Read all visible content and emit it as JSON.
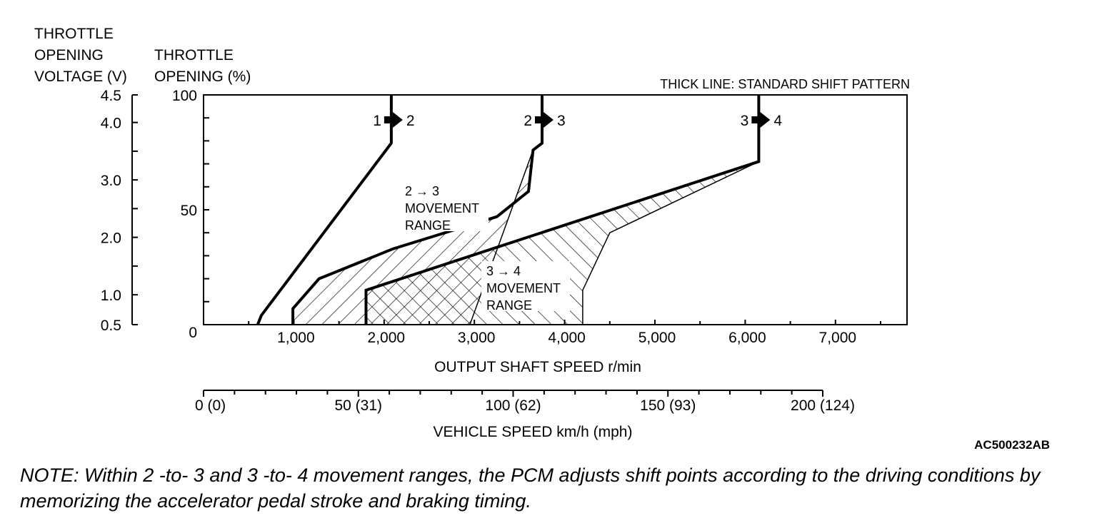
{
  "chart_data": {
    "type": "line",
    "title": "",
    "pattern_note": "THICK LINE: STANDARD SHIFT PATTERN",
    "figure_code": "AC500232AB",
    "xlabel": "OUTPUT SHAFT SPEED r/min",
    "xlim": [
      0,
      7800
    ],
    "x_ticks": [
      "1,000",
      "2,000",
      "3,000",
      "4,000",
      "5,000",
      "6,000",
      "7,000"
    ],
    "x_tick_values": [
      1000,
      2000,
      3000,
      4000,
      5000,
      6000,
      7000
    ],
    "left_axis": {
      "label_lines": [
        "THROTTLE",
        "OPENING",
        "VOLTAGE (V)"
      ],
      "ticks": [
        {
          "label": "4.5",
          "pct": 100
        },
        {
          "label": "4.0",
          "pct": 88
        },
        {
          "label": "3.0",
          "pct": 63
        },
        {
          "label": "2.0",
          "pct": 38
        },
        {
          "label": "1.0",
          "pct": 13
        },
        {
          "label": "0.5",
          "pct": 0
        }
      ]
    },
    "right_axis": {
      "label_lines": [
        "THROTTLE",
        "OPENING (%)"
      ],
      "ticks": [
        {
          "label": "100",
          "pct": 100
        },
        {
          "label": "50",
          "pct": 50
        },
        {
          "label": "0",
          "pct": 0
        }
      ]
    },
    "ylim": [
      0,
      100
    ],
    "vehicle_speed_axis": {
      "label": "VEHICLE SPEED km/h (mph)",
      "range_kmh": [
        0,
        200
      ],
      "ticks": [
        {
          "label": "0 (0)",
          "kmh": 0
        },
        {
          "label": "50 (31)",
          "kmh": 50
        },
        {
          "label": "100 (62)",
          "kmh": 100
        },
        {
          "label": "150 (93)",
          "kmh": 150
        },
        {
          "label": "200 (124)",
          "kmh": 200
        }
      ]
    },
    "shift_lines": [
      {
        "from": "1",
        "to": "2",
        "points": [
          [
            600,
            0
          ],
          [
            640,
            4
          ],
          [
            2080,
            79
          ],
          [
            2080,
            100
          ]
        ]
      },
      {
        "from": "2",
        "to": "3",
        "points": [
          [
            990,
            0
          ],
          [
            990,
            7
          ],
          [
            1280,
            20
          ],
          [
            2100,
            33
          ],
          [
            3250,
            47
          ],
          [
            3600,
            58
          ],
          [
            3650,
            76
          ],
          [
            3750,
            79
          ],
          [
            3750,
            100
          ]
        ]
      },
      {
        "from": "3",
        "to": "4",
        "points": [
          [
            1800,
            0
          ],
          [
            1800,
            15
          ],
          [
            6150,
            71
          ],
          [
            6150,
            100
          ]
        ]
      }
    ],
    "ranges": [
      {
        "name": "2 → 3 MOVEMENT RANGE",
        "label_lines": [
          "2 → 3",
          "MOVEMENT",
          "RANGE"
        ],
        "outline": [
          [
            990,
            0
          ],
          [
            990,
            7
          ],
          [
            1280,
            20
          ],
          [
            2100,
            33
          ],
          [
            3250,
            47
          ],
          [
            3600,
            58
          ],
          [
            3650,
            76
          ],
          [
            2950,
            0
          ]
        ]
      },
      {
        "name": "3 → 4 MOVEMENT RANGE",
        "label_lines": [
          "3 → 4",
          "MOVEMENT",
          "RANGE"
        ],
        "outline": [
          [
            1800,
            0
          ],
          [
            1800,
            15
          ],
          [
            6150,
            71
          ],
          [
            4500,
            40
          ],
          [
            4200,
            15
          ],
          [
            4200,
            0
          ]
        ]
      }
    ]
  },
  "note": "NOTE: Within 2 -to- 3 and 3 -to- 4 movement ranges, the PCM adjusts shift points according to the driving conditions by memorizing the accelerator pedal stroke and braking timing."
}
